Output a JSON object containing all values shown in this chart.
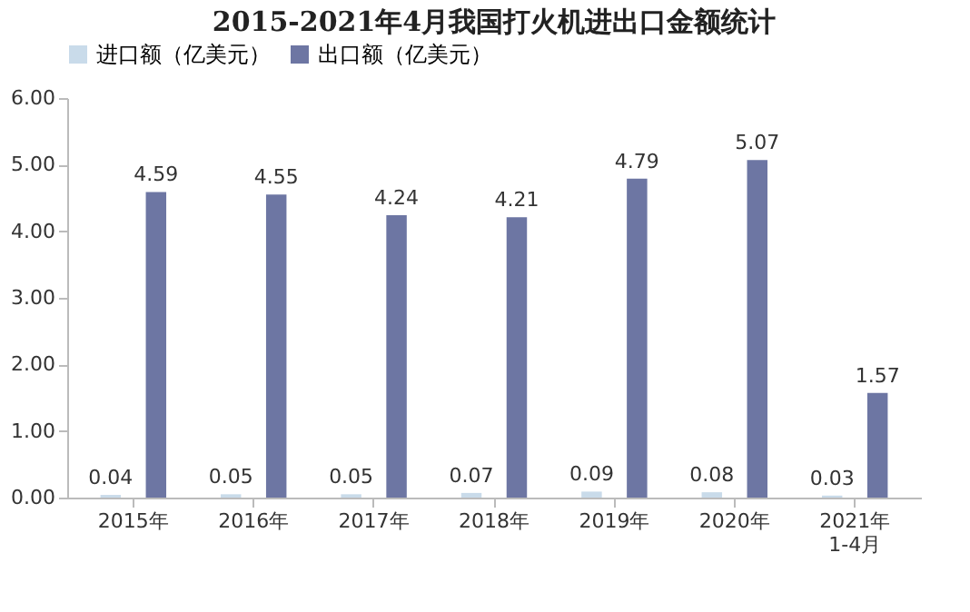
{
  "chart_data": {
    "type": "bar",
    "title": "2015-2021年4月我国打火机进出口金额统计",
    "categories": [
      "2015年",
      "2016年",
      "2017年",
      "2018年",
      "2019年",
      "2020年",
      "2021年\n1-4月"
    ],
    "series": [
      {
        "name": "进口额（亿美元）",
        "color": "#c9dbea",
        "values": [
          0.04,
          0.05,
          0.05,
          0.07,
          0.09,
          0.08,
          0.03
        ]
      },
      {
        "name": "出口额（亿美元）",
        "color": "#6d76a3",
        "values": [
          4.59,
          4.55,
          4.24,
          4.21,
          4.79,
          5.07,
          1.57
        ]
      }
    ],
    "ylim": [
      0,
      6
    ],
    "yticks": [
      {
        "value": 0,
        "label": "0.00"
      },
      {
        "value": 1,
        "label": "1.00"
      },
      {
        "value": 2,
        "label": "2.00"
      },
      {
        "value": 3,
        "label": "3.00"
      },
      {
        "value": 4,
        "label": "4.00"
      },
      {
        "value": 5,
        "label": "5.00"
      },
      {
        "value": 6,
        "label": "6.00"
      }
    ],
    "grid": false,
    "legend": "top",
    "data_labels": true
  }
}
